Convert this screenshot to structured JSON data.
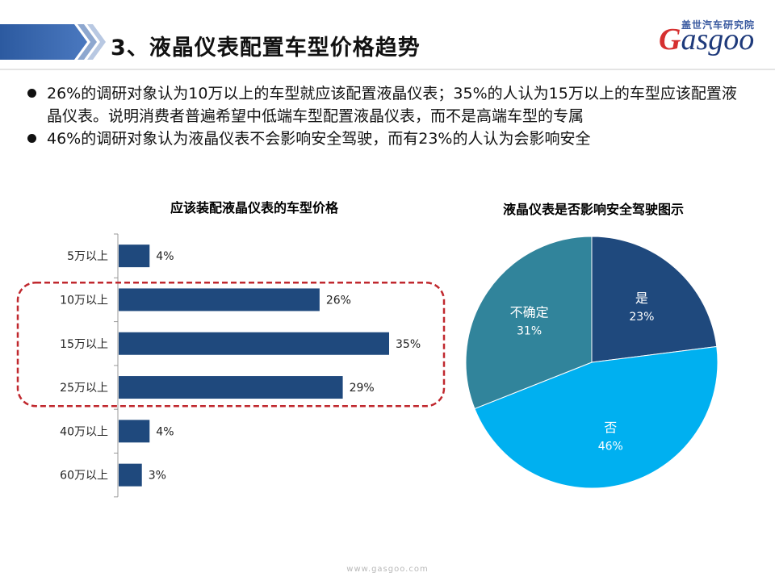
{
  "header": {
    "title": "3、液晶仪表配置车型价格趋势",
    "brand_cn": "盖世汽车研究院",
    "brand_logo_g": "G",
    "brand_logo_rest": "asgoo"
  },
  "bullets": [
    "26%的调研对象认为10万以上的车型就应该配置液晶仪表；35%的人认为15万以上的车型应该配置液晶仪表。说明消费者普遍希望中低端车型配置液晶仪表，而不是高端车型的专属",
    "46%的调研对象认为液晶仪表不会影响安全驾驶，而有23%的人认为会影响安全"
  ],
  "colors": {
    "bar": "#1f497d",
    "highlight": "#c0282e",
    "pie_yes": "#1f497d",
    "pie_no": "#00b0f0",
    "pie_unsure": "#31849b"
  },
  "chart_data": [
    {
      "type": "bar",
      "orientation": "horizontal",
      "title": "应该装配液晶仪表的车型价格",
      "categories": [
        "5万以上",
        "10万以上",
        "15万以上",
        "25万以上",
        "40万以上",
        "60万以上"
      ],
      "values": [
        4,
        26,
        35,
        29,
        4,
        3
      ],
      "value_labels": [
        "4%",
        "26%",
        "35%",
        "29%",
        "4%",
        "3%"
      ],
      "unit": "%",
      "highlighted_categories": [
        "10万以上",
        "15万以上",
        "25万以上"
      ],
      "xlim": [
        0,
        40
      ]
    },
    {
      "type": "pie",
      "title": "液晶仪表是否影响安全驾驶图示",
      "labels": [
        "是",
        "否",
        "不确定"
      ],
      "values": [
        23,
        46,
        31
      ],
      "value_labels": [
        "23%",
        "46%",
        "31%"
      ],
      "unit": "%"
    }
  ],
  "footer": {
    "url": "www.gasgoo.com"
  }
}
